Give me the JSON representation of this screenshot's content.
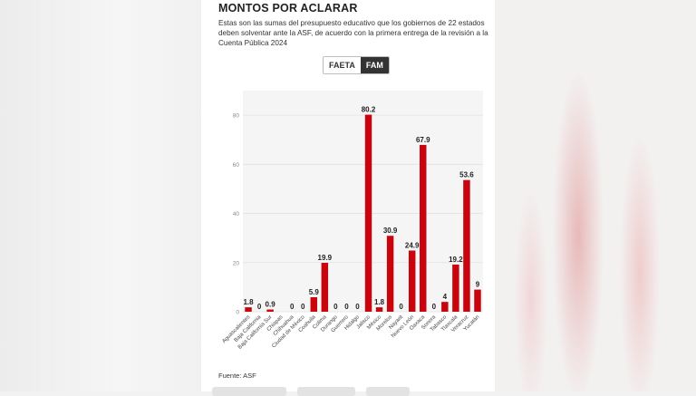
{
  "title": "MONTOS POR ACLARAR",
  "description": "Estas son las sumas del presupuesto educativo que los gobiernos de 22 estados deben solventar ante la ASF, de acuerdo con la primera entrega de la revisión a la Cuenta Pública 2024",
  "toggle": {
    "options": [
      "FAETA",
      "FAM"
    ],
    "selected": "FAM"
  },
  "source": "Fuente: ASF",
  "colors": {
    "bar": "#c8050c",
    "grid": "#e2e2e2",
    "plot_bg": "#f5f5f5"
  },
  "chart_data": {
    "type": "bar",
    "title": "",
    "xlabel": "",
    "ylabel": "",
    "ylim": [
      0,
      90
    ],
    "yticks": [
      0,
      20,
      40,
      60,
      80
    ],
    "grid": true,
    "categories": [
      "Aguascalientes",
      "Baja California",
      "Baja California Sur",
      "Chiapas",
      "Chihuahua",
      "Ciudad de México",
      "Coahuila",
      "Colima",
      "Durango",
      "Guerrero",
      "Hidalgo",
      "Jalisco",
      "México",
      "Morelos",
      "Nayarit",
      "Nuevo León",
      "Oaxaca",
      "Sonora",
      "Tabasco",
      "Tlaxcala",
      "Veracruz",
      "Yucatán"
    ],
    "values": [
      1.8,
      0,
      0.9,
      0,
      0,
      0,
      5.9,
      19.9,
      0,
      0,
      0,
      80.2,
      1.8,
      30.9,
      0,
      24.9,
      67.9,
      0,
      4,
      19.2,
      53.6,
      9
    ],
    "data_labels": [
      "1.8",
      "0",
      "0.9",
      "",
      "0",
      "0",
      "5.9",
      "19.9",
      "0",
      "0",
      "0",
      "80.2",
      "1.8",
      "30.9",
      "0",
      "24.9",
      "67.9",
      "0",
      "4",
      "19.2",
      "53.6",
      "9"
    ]
  }
}
